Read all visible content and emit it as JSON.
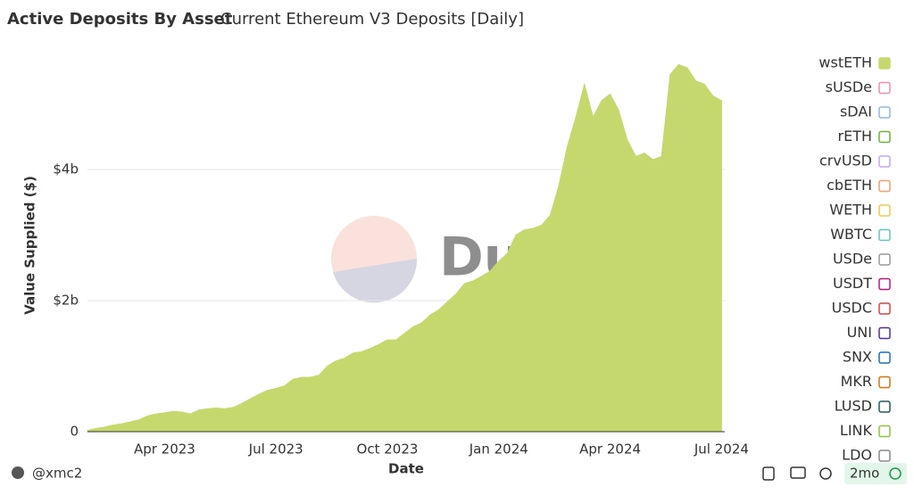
{
  "chart_data": {
    "type": "area",
    "title": "Active Deposits By Asset",
    "subtitle": "Current Ethereum V3 Deposits [Daily]",
    "x_label": "Date",
    "y_label": "Value Supplied ($)",
    "watermark": "Dune",
    "author": "@xmc2",
    "age": "2mo",
    "categories": [
      null,
      null,
      null,
      null,
      null,
      null,
      null,
      null,
      null,
      "Apr 2023",
      null,
      null,
      null,
      null,
      null,
      null,
      null,
      null,
      null,
      null,
      null,
      null,
      "Jul 2023",
      null,
      null,
      null,
      null,
      null,
      null,
      null,
      null,
      null,
      null,
      null,
      null,
      "Oct 2023",
      null,
      null,
      null,
      null,
      null,
      null,
      null,
      null,
      null,
      null,
      null,
      null,
      "Jan 2024",
      null,
      null,
      null,
      null,
      null,
      null,
      null,
      null,
      null,
      null,
      null,
      null,
      "Apr 2024",
      null,
      null,
      null,
      null,
      null,
      null,
      null,
      null,
      null,
      null,
      null,
      null,
      "Jul 2024"
    ],
    "series": [
      {
        "name": "wstETH",
        "color": "#c5d86d",
        "values": [
          20000000.0,
          50000000.0,
          70000000.0,
          100000000.0,
          120000000.0,
          150000000.0,
          180000000.0,
          240000000.0,
          270000000.0,
          290000000.0,
          310000000.0,
          300000000.0,
          270000000.0,
          330000000.0,
          350000000.0,
          360000000.0,
          350000000.0,
          370000000.0,
          430000000.0,
          500000000.0,
          570000000.0,
          630000000.0,
          660000000.0,
          700000000.0,
          800000000.0,
          830000000.0,
          830000000.0,
          860000000.0,
          1000000000.0,
          1080000000.0,
          1120000000.0,
          1200000000.0,
          1220000000.0,
          1270000000.0,
          1330000000.0,
          1400000000.0,
          1400000000.0,
          1500000000.0,
          1600000000.0,
          1660000000.0,
          1780000000.0,
          1860000000.0,
          1980000000.0,
          2100000000.0,
          2260000000.0,
          2300000000.0,
          2370000000.0,
          2450000000.0,
          2600000000.0,
          2720000000.0,
          3000000000.0,
          3080000000.0,
          3100000000.0,
          3150000000.0,
          3300000000.0,
          3750000000.0,
          4350000000.0,
          4800000000.0,
          5300000000.0,
          4800000000.0,
          5050000000.0,
          5150000000.0,
          4900000000.0,
          4450000000.0,
          4200000000.0,
          4250000000.0,
          4150000000.0,
          4200000000.0,
          5450000000.0,
          5600000000.0,
          5550000000.0,
          5350000000.0,
          5300000000.0,
          5120000000.0,
          5050000000.0
        ]
      }
    ],
    "hidden_series": [
      {
        "name": "sUSDe",
        "color": "#f28cb1"
      },
      {
        "name": "sDAI",
        "color": "#8fb8e6"
      },
      {
        "name": "rETH",
        "color": "#6db33f"
      },
      {
        "name": "crvUSD",
        "color": "#c9a6f2"
      },
      {
        "name": "cbETH",
        "color": "#f0a06a"
      },
      {
        "name": "WETH",
        "color": "#f2c94c"
      },
      {
        "name": "WBTC",
        "color": "#5fc7c0"
      },
      {
        "name": "USDe",
        "color": "#9a9a9a"
      },
      {
        "name": "USDT",
        "color": "#c0177f"
      },
      {
        "name": "USDC",
        "color": "#e0413e"
      },
      {
        "name": "UNI",
        "color": "#5b2d8e"
      },
      {
        "name": "SNX",
        "color": "#1f6fb4"
      },
      {
        "name": "MKR",
        "color": "#d9730d"
      },
      {
        "name": "LUSD",
        "color": "#1b5e5a"
      },
      {
        "name": "LINK",
        "color": "#8cc63f"
      },
      {
        "name": "LDO",
        "color": "#888888"
      }
    ],
    "ylim": [
      0,
      5800000000.0
    ],
    "yticks": [
      0,
      {
        "value": 2000000000.0,
        "label": "$2b"
      },
      {
        "value": 4000000000.0,
        "label": "$4b"
      }
    ],
    "grid": true
  }
}
